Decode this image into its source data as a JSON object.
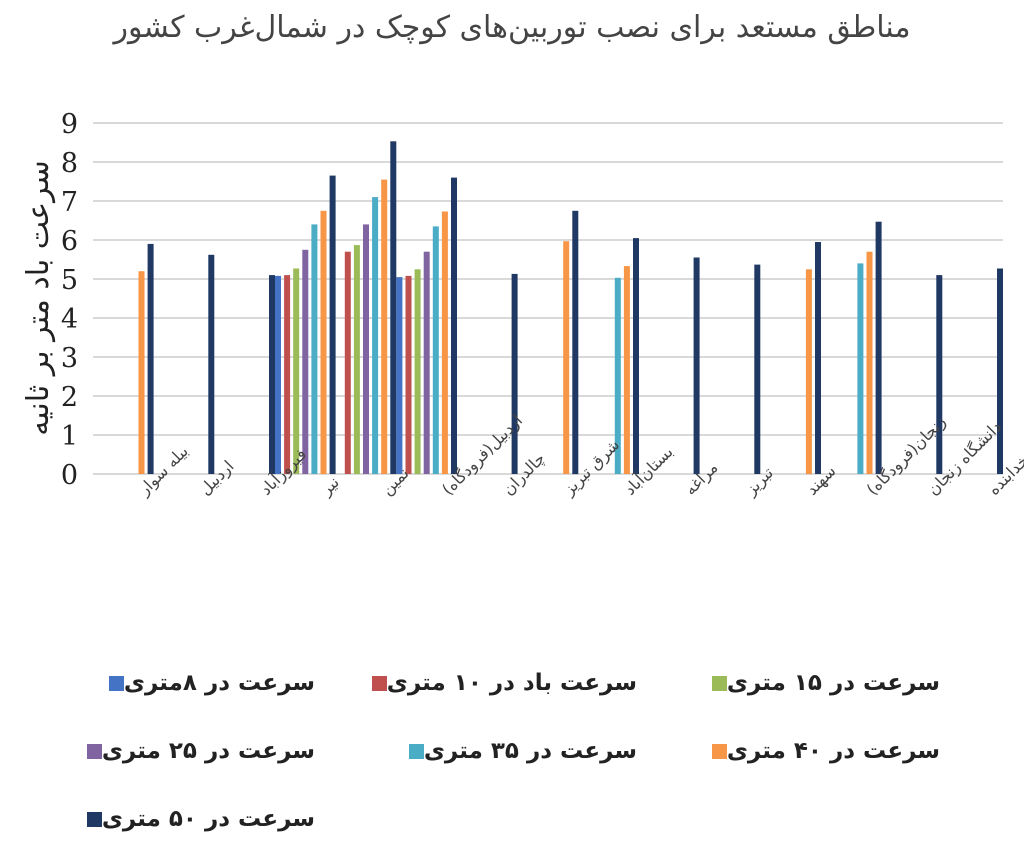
{
  "chart_data": {
    "type": "bar",
    "title": "مناطق مستعد برای نصب توربین‌های کوچک در شمال‌غرب کشور",
    "ylabel": "سرعت باد متر بر ثانیه",
    "xlabel": "",
    "ylim": [
      0,
      9
    ],
    "yticks": [
      0,
      1,
      2,
      3,
      4,
      5,
      6,
      7,
      8,
      9
    ],
    "grid": true,
    "legend_position": "bottom",
    "categories": [
      "بیله سوار",
      "اردبیل",
      "فیروزآباد",
      "نیر",
      "نمین",
      "اردبیل(فرودگاه)",
      "چالدران",
      "شرق تبریز",
      "بستان‌آباد",
      "مراغه",
      "تبریز",
      "سهند",
      "زنجان(فرودگاه)",
      "دانشگاه زنجان",
      "خدابنده"
    ],
    "series": [
      {
        "name": "سرعت در ۸متری",
        "color": "#4472C4",
        "values": [
          null,
          null,
          null,
          5.08,
          null,
          5.05,
          null,
          null,
          null,
          null,
          null,
          null,
          null,
          null,
          null
        ]
      },
      {
        "name": "سرعت باد در ۱۰ متری",
        "color": "#C0504D",
        "values": [
          null,
          null,
          null,
          5.1,
          5.7,
          5.08,
          null,
          null,
          null,
          null,
          null,
          null,
          null,
          null,
          null
        ]
      },
      {
        "name": "سرعت در ۱۵ متری",
        "color": "#9BBB59",
        "values": [
          null,
          null,
          null,
          5.27,
          5.87,
          5.25,
          null,
          null,
          null,
          null,
          null,
          null,
          null,
          null,
          null
        ]
      },
      {
        "name": "سرعت در ۲۵ متری",
        "color": "#8064A2",
        "values": [
          null,
          null,
          null,
          5.75,
          6.4,
          5.7,
          null,
          null,
          null,
          null,
          null,
          null,
          null,
          null,
          null
        ]
      },
      {
        "name": "سرعت در ۳۵ متری",
        "color": "#4BACC6",
        "values": [
          null,
          null,
          null,
          6.4,
          7.1,
          6.35,
          null,
          null,
          5.03,
          null,
          null,
          null,
          5.4,
          null,
          null
        ]
      },
      {
        "name": "سرعت در ۴۰ متری",
        "color": "#F79646",
        "values": [
          5.2,
          null,
          null,
          6.75,
          7.55,
          6.73,
          null,
          5.97,
          5.33,
          null,
          null,
          5.25,
          5.7,
          null,
          null
        ]
      },
      {
        "name": "سرعت در ۵۰ متری",
        "color": "#1F3864",
        "values": [
          5.9,
          5.62,
          5.1,
          7.65,
          8.53,
          7.6,
          5.13,
          6.75,
          6.05,
          5.55,
          5.37,
          5.95,
          6.47,
          5.1,
          5.27
        ]
      }
    ]
  }
}
